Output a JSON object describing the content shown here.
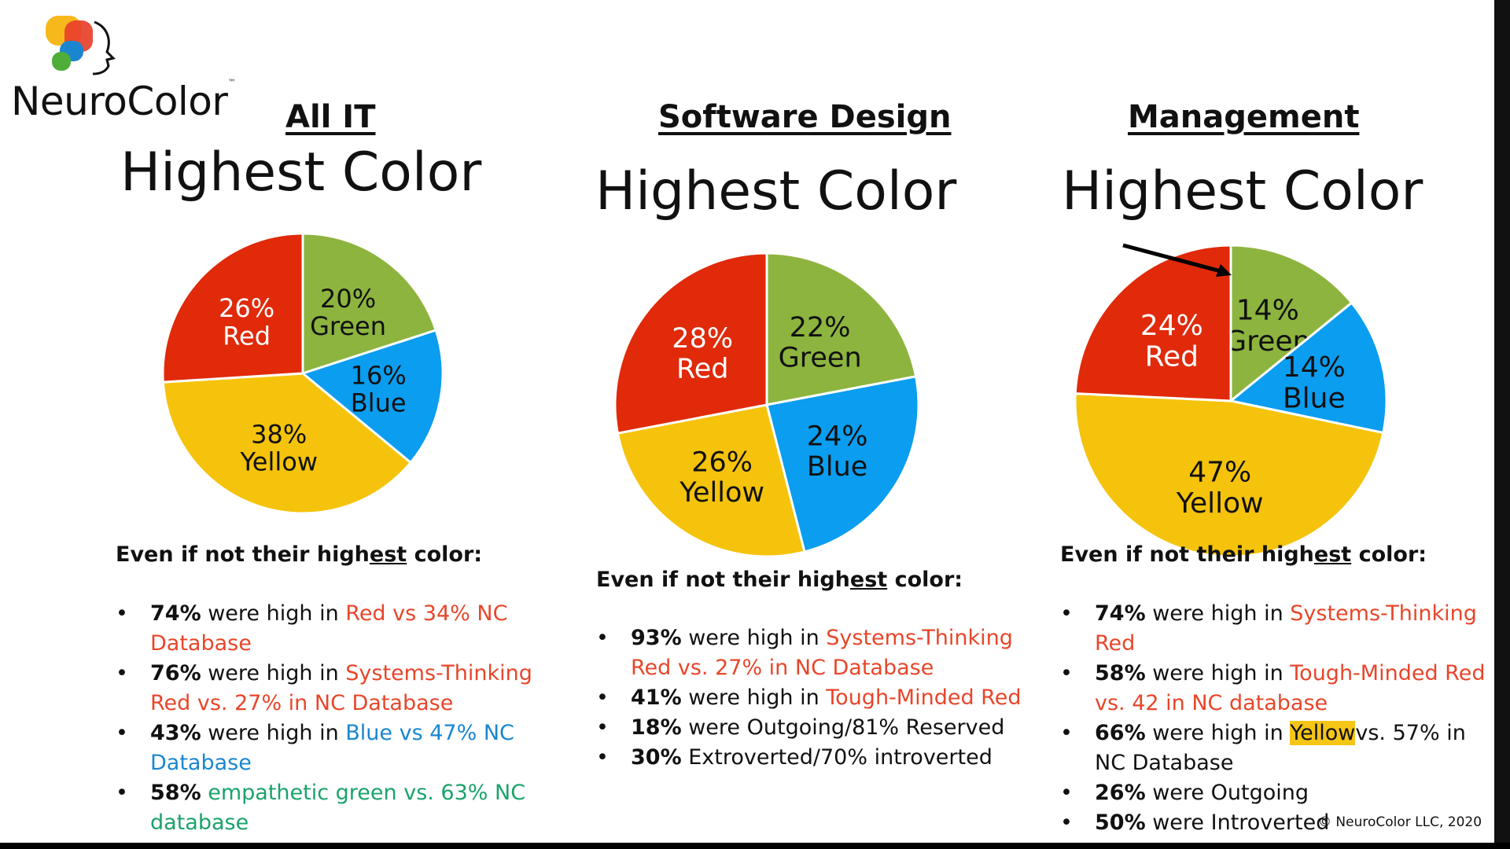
{
  "logo": {
    "name": "NeuroColor",
    "tm": "™"
  },
  "copyright": "© NeuroColor LLC, 2020",
  "colors": {
    "red": "#e02a0a",
    "green": "#8db43e",
    "blue": "#0a9df0",
    "yellow": "#f5c30b"
  },
  "columns": [
    {
      "title": "All IT",
      "heading": "Highest Color",
      "lead_pre": "Even if not their high",
      "lead_ul": "est",
      "lead_post": " color:",
      "bullets": [
        {
          "bold": "74%",
          "plain": " were high in ",
          "colored": "Red vs 34% NC Database",
          "color": "red",
          "rest": ""
        },
        {
          "bold": "76%",
          "plain": " were high in ",
          "colored": "Systems-Thinking Red vs. 27% in NC Database",
          "color": "red",
          "rest": ""
        },
        {
          "bold": "43%",
          "plain": " were high in ",
          "colored": "Blue vs 47% NC Database",
          "color": "blue",
          "rest": ""
        },
        {
          "bold": "58%",
          "plain": " ",
          "colored": "empathetic green vs. 63% NC database",
          "color": "green",
          "rest": ""
        }
      ]
    },
    {
      "title": "Software Design",
      "heading": "Highest Color",
      "lead_pre": "Even if not their high",
      "lead_ul": "est",
      "lead_post": " color:",
      "bullets": [
        {
          "bold": "93%",
          "plain": " were high in ",
          "colored": "Systems-Thinking Red vs. 27% in NC Database",
          "color": "red",
          "rest": ""
        },
        {
          "bold": "41%",
          "plain": " were high in ",
          "colored": "Tough-Minded Red",
          "color": "red",
          "rest": ""
        },
        {
          "bold": "18%",
          "plain": " were Outgoing/81% Reserved",
          "colored": "",
          "color": "",
          "rest": ""
        },
        {
          "bold": "30%",
          "plain": " Extroverted/70% introverted",
          "colored": "",
          "color": "",
          "rest": ""
        }
      ]
    },
    {
      "title": "Management",
      "heading": "Highest Color",
      "lead_pre": "Even if not their high",
      "lead_ul": "est",
      "lead_post": " color:",
      "bullets": [
        {
          "bold": "74%",
          "plain": " were high in ",
          "colored": "Systems-Thinking Red",
          "color": "red",
          "rest": ""
        },
        {
          "bold": "58%",
          "plain": " were high in ",
          "colored": "Tough-Minded Red vs. 42 in NC database",
          "color": "red",
          "rest": ""
        },
        {
          "bold": "66%",
          "plain": " were high in ",
          "colored": "Yellow",
          "color": "highlight",
          "rest": "vs. 57% in NC Database"
        },
        {
          "bold": "26%",
          "plain": " were Outgoing",
          "colored": "",
          "color": "",
          "rest": ""
        },
        {
          "bold": "50%",
          "plain": " were Introverted",
          "colored": "",
          "color": "",
          "rest": ""
        }
      ]
    }
  ],
  "chart_data": [
    {
      "type": "pie",
      "title": "Highest Color",
      "subtitle": "All IT",
      "slices": [
        {
          "label": "Green",
          "value": 20,
          "text": "20%",
          "color": "green"
        },
        {
          "label": "Blue",
          "value": 16,
          "text": "16%",
          "color": "blue"
        },
        {
          "label": "Yellow",
          "value": 38,
          "text": "38%",
          "color": "yellow"
        },
        {
          "label": "Red",
          "value": 26,
          "text": "26%",
          "color": "red"
        }
      ]
    },
    {
      "type": "pie",
      "title": "Highest Color",
      "subtitle": "Software Design",
      "slices": [
        {
          "label": "Green",
          "value": 22,
          "text": "22%",
          "color": "green"
        },
        {
          "label": "Blue",
          "value": 24,
          "text": "24%",
          "color": "blue"
        },
        {
          "label": "Yellow",
          "value": 26,
          "text": "26%",
          "color": "yellow"
        },
        {
          "label": "Red",
          "value": 28,
          "text": "28%",
          "color": "red"
        }
      ]
    },
    {
      "type": "pie",
      "title": "Highest Color",
      "subtitle": "Management",
      "slices": [
        {
          "label": "Green",
          "value": 14,
          "text": "14%",
          "color": "green"
        },
        {
          "label": "Blue",
          "value": 14,
          "text": "14%",
          "color": "blue"
        },
        {
          "label": "Yellow",
          "value": 47,
          "text": "47%",
          "color": "yellow"
        },
        {
          "label": "Red",
          "value": 24,
          "text": "24%",
          "color": "red"
        }
      ],
      "annotation": "arrow pointing to top of pie"
    }
  ]
}
